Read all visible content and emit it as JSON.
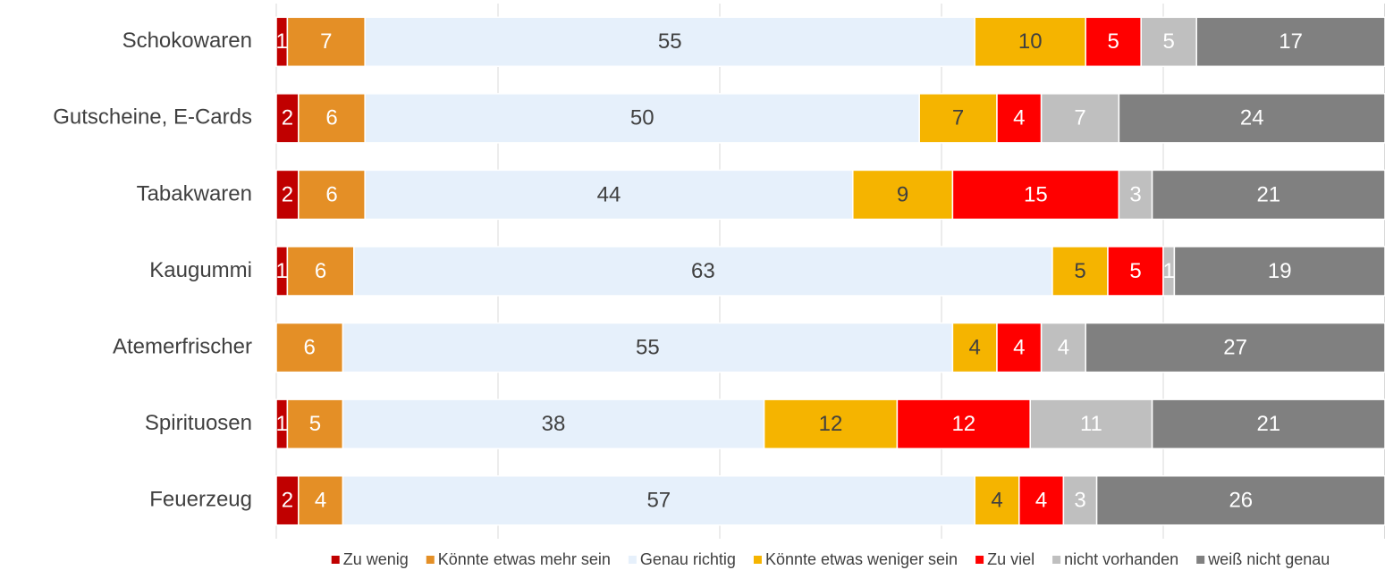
{
  "chart_data": {
    "type": "stacked-bar-horizontal",
    "categories": [
      "Schokowaren",
      "Gutscheine, E-Cards",
      "Tabakwaren",
      "Kaugummi",
      "Atemerfrischer",
      "Spirituosen",
      "Feuerzeug"
    ],
    "series": [
      {
        "name": "Zu wenig",
        "color": "#c00000",
        "label_color": "#ffffff",
        "values": [
          1,
          2,
          2,
          1,
          null,
          1,
          2
        ]
      },
      {
        "name": "Könnte etwas mehr sein",
        "color": "#e48f26",
        "label_color": "#ffffff",
        "values": [
          7,
          6,
          6,
          6,
          6,
          5,
          4
        ]
      },
      {
        "name": "Genau richtig",
        "color": "#e6f0fb",
        "label_color": "#404040",
        "values": [
          55,
          50,
          44,
          63,
          55,
          38,
          57
        ]
      },
      {
        "name": "Könnte etwas weniger sein",
        "color": "#f5b400",
        "label_color": "#404040",
        "values": [
          10,
          7,
          9,
          5,
          4,
          12,
          4
        ]
      },
      {
        "name": "Zu viel",
        "color": "#ff0000",
        "label_color": "#ffffff",
        "values": [
          5,
          4,
          15,
          5,
          4,
          12,
          4
        ]
      },
      {
        "name": "nicht vorhanden",
        "color": "#bfbfbf",
        "label_color": "#ffffff",
        "values": [
          5,
          7,
          3,
          1,
          4,
          11,
          3
        ]
      },
      {
        "name": "weiß nicht genau",
        "color": "#808080",
        "label_color": "#ffffff",
        "values": [
          17,
          24,
          21,
          19,
          27,
          21,
          26
        ]
      }
    ],
    "xlim": [
      0,
      100
    ],
    "xticks": [
      0,
      20,
      40,
      60,
      80,
      100
    ],
    "grid": true,
    "legend": "bottom"
  }
}
